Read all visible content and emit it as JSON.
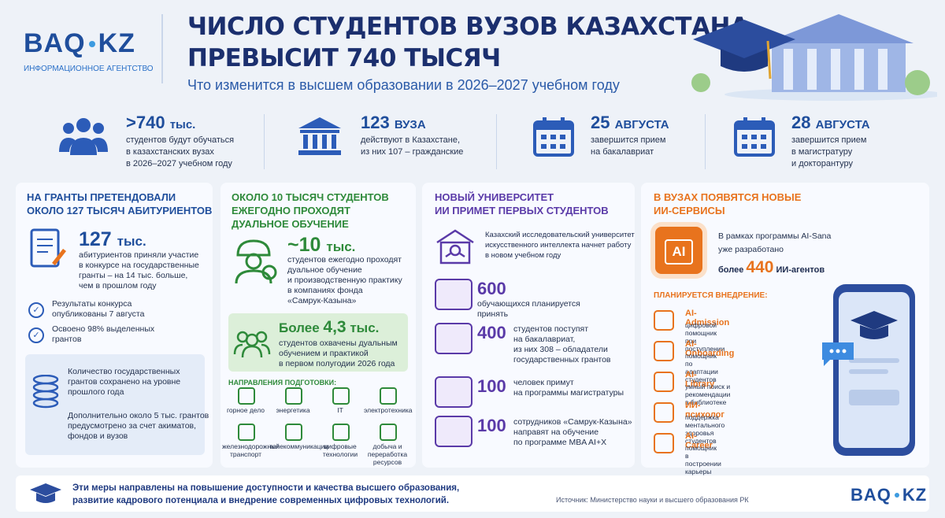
{
  "header": {
    "logo_left": "BAQ",
    "logo_right": "KZ",
    "logo_sub": "ИНФОРМАЦИОННОЕ АГЕНТСТВО",
    "title": [
      "ЧИСЛО СТУДЕНТОВ ВУЗОВ КАЗАХСТАНА",
      "ПРЕВЫСИТ 740 ТЫСЯЧ"
    ],
    "subtitle": "Что изменится в высшем образовании в 2026–2027 учебном году"
  },
  "stats": [
    {
      "value": ">740",
      "unit": "тыс.",
      "lines": [
        "студентов будут обучаться",
        "в казахстанских вузах",
        "в 2026–2027 учебном году"
      ]
    },
    {
      "value": "123",
      "unit": "ВУЗА",
      "lines": [
        "действуют в Казахстане,",
        "из них 107 – гражданские"
      ]
    },
    {
      "value": "25",
      "unit": "АВГУСТА",
      "lines": [
        "завершится прием",
        "на бакалавриат"
      ]
    },
    {
      "value": "28",
      "unit": "АВГУСТА",
      "lines": [
        "завершится прием",
        "в магистратуру",
        "и докторантуру"
      ]
    }
  ],
  "grants": {
    "title": [
      "НА ГРАНТЫ ПРЕТЕНДОВАЛИ",
      "ОКОЛО 127 ТЫСЯЧ АБИТУРИЕНТОВ"
    ],
    "value": "127",
    "unit": "тыс.",
    "lines": [
      "абитуриентов приняли участие",
      "в конкурсе на государственные",
      "гранты – на 14 тыс. больше,",
      "чем в прошлом году"
    ],
    "checks": [
      [
        "Результаты конкурса",
        "опубликованы 7 августа"
      ],
      [
        "Освоено 98% выделенных",
        "грантов"
      ]
    ],
    "box": [
      [
        "Количество государственных",
        "грантов сохранено на уровне",
        "прошлого года"
      ],
      [
        "Дополнительно около 5 тыс. грантов",
        "предусмотрено за счет акиматов,",
        "фондов и вузов"
      ]
    ]
  },
  "dual": {
    "title": [
      "ОКОЛО 10 ТЫСЯЧ СТУДЕНТОВ",
      "ЕЖЕГОДНО ПРОХОДЯТ",
      "ДУАЛЬНОЕ ОБУЧЕНИЕ"
    ],
    "value": "~10",
    "unit": "тыс.",
    "lines": [
      "студентов ежегодно проходят",
      "дуальное обучение",
      "и производственную практику",
      "в компаниях фонда",
      "«Самрук-Казына»"
    ],
    "box_prefix": "Более",
    "box_value": "4,3",
    "box_unit": "тыс.",
    "box_lines": [
      "студентов охвачены дуальным",
      "обучением и практикой",
      "в первом полугодии 2026 года"
    ],
    "directions_title": "НАПРАВЛЕНИЯ ПОДГОТОВКИ:",
    "directions": [
      [
        "горное дело"
      ],
      [
        "энергетика"
      ],
      [
        "IT"
      ],
      [
        "электротехника"
      ],
      [
        "железнодорожный",
        "транспорт"
      ],
      [
        "телекоммуникации"
      ],
      [
        "цифровые",
        "технологии"
      ],
      [
        "добыча и",
        "переработка",
        "ресурсов"
      ]
    ]
  },
  "ai_university": {
    "title": [
      "НОВЫЙ УНИВЕРСИТЕТ",
      "ИИ ПРИМЕТ ПЕРВЫХ СТУДЕНТОВ"
    ],
    "intro": [
      "Казахский исследовательский университет",
      "искусственного интеллекта начнет работу",
      "в новом учебном году"
    ],
    "items": [
      {
        "value": "600",
        "lines": [
          "обучающихся планируется принять"
        ]
      },
      {
        "value": "400",
        "lines": [
          "студентов поступят",
          "на бакалавриат,",
          "из них 308 – обладатели",
          "государственных грантов"
        ]
      },
      {
        "value": "100",
        "lines": [
          "человек примут",
          "на программы магистратуры"
        ]
      },
      {
        "value": "100",
        "lines": [
          "сотрудников «Самрук-Казына»",
          "направят на обучение",
          "по программе MBA AI+X"
        ]
      }
    ]
  },
  "ai_services": {
    "title": [
      "В ВУЗАХ ПОЯВЯТСЯ НОВЫЕ",
      "ИИ-СЕРВИСЫ"
    ],
    "chip": "AI",
    "intro": [
      "В рамках программы AI-Sana",
      "уже разработано"
    ],
    "prefix": "более",
    "value": "440",
    "unit": "ИИ-агентов",
    "planned": "ПЛАНИРУЕТСЯ ВНЕДРЕНИЕ:",
    "services": [
      {
        "name": "AI-Admission",
        "desc": "цифровой помощник при поступлении"
      },
      {
        "name": "AI-Onboarding",
        "desc": "помощник по адаптации студентов"
      },
      {
        "name": "AI-Library",
        "desc": "умный поиск и рекомендации в библиотеке"
      },
      {
        "name": "ИИ-психолог",
        "desc": "поддержка ментального здоровья студентов"
      },
      {
        "name": "AI-Career",
        "desc": "помощник в построении карьеры"
      }
    ]
  },
  "footer": {
    "lines": [
      "Эти меры направлены на повышение доступности и качества высшего образования,",
      "развитие кадрового потенциала и внедрение современных цифровых технологий."
    ],
    "source": "Источник: Министерство науки и высшего образования РК",
    "logo_left": "BAQ",
    "logo_right": "KZ"
  }
}
